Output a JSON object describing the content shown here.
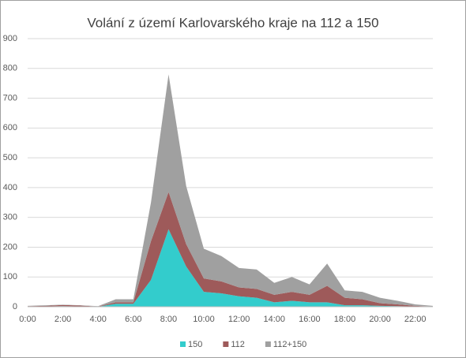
{
  "chart_data": {
    "type": "stacked-area",
    "title": "Volání z území Karlovarského kraje na 112 a 150",
    "categories": [
      "0:00",
      null,
      "2:00",
      null,
      "4:00",
      null,
      "6:00",
      null,
      "8:00",
      null,
      "10:00",
      null,
      "12:00",
      null,
      "14:00",
      null,
      "16:00",
      null,
      "18:00",
      null,
      "20:00",
      null,
      "22:00",
      null
    ],
    "series": [
      {
        "name": "150",
        "color": "#33cccc",
        "values": [
          0,
          1,
          2,
          1,
          0,
          10,
          10,
          90,
          260,
          135,
          50,
          45,
          35,
          30,
          15,
          20,
          15,
          15,
          5,
          5,
          3,
          2,
          1,
          0
        ]
      },
      {
        "name": "112",
        "color": "#9e5a5a",
        "values": [
          2,
          2,
          4,
          3,
          1,
          5,
          5,
          130,
          125,
          75,
          45,
          40,
          30,
          30,
          25,
          30,
          25,
          55,
          25,
          20,
          9,
          6,
          2,
          1
        ]
      },
      {
        "name": "112+150",
        "color": "#a0a0a0",
        "values": [
          1,
          2,
          1,
          1,
          1,
          10,
          10,
          130,
          395,
          195,
          100,
          85,
          65,
          65,
          40,
          50,
          35,
          75,
          25,
          25,
          18,
          12,
          5,
          2
        ]
      }
    ],
    "ylim": [
      0,
      900
    ],
    "yticks": [
      0,
      100,
      200,
      300,
      400,
      500,
      600,
      700,
      800,
      900
    ],
    "grid": true,
    "legend": "bottom"
  }
}
